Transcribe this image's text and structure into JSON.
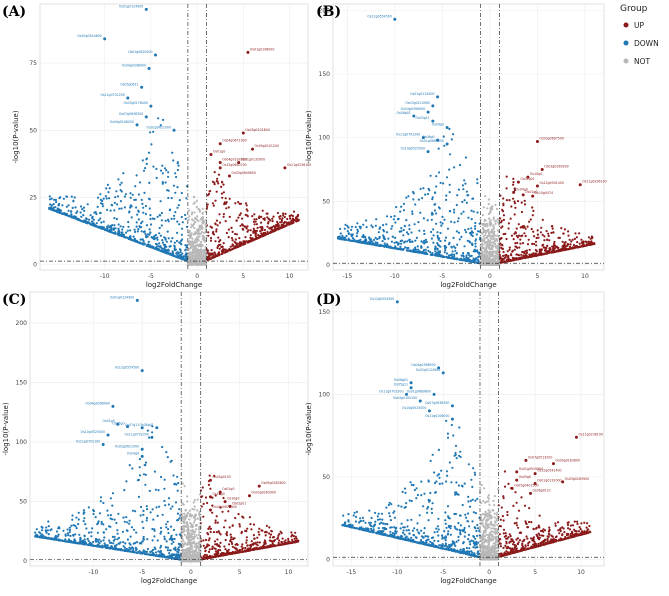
{
  "legend": {
    "title": "Group",
    "entries": [
      {
        "label": "UP",
        "color": "#8b1a1a"
      },
      {
        "label": "DOWN",
        "color": "#1f77b4"
      },
      {
        "label": "NOT",
        "color": "#b8b8b8"
      }
    ]
  },
  "chart_data": [
    {
      "type": "scatter",
      "title": "(A)",
      "xlabel": "log2FoldChange",
      "ylabel": "-log10(P-value)",
      "xlim": [
        -17,
        12
      ],
      "ylim": [
        -2,
        97
      ],
      "xticks": [
        -10,
        -5,
        0,
        5,
        10
      ],
      "yticks": [
        0,
        25,
        50,
        75
      ],
      "fc_threshold": 1,
      "p_threshold": 1.3,
      "down_spread": 16,
      "up_spread": 11,
      "seed": 11,
      "labeled": [
        {
          "gene": "Os01g0124900",
          "x": -5.5,
          "y": 95,
          "group": "DOWN"
        },
        {
          "gene": "Os10g0544600",
          "x": -10,
          "y": 84,
          "group": "DOWN"
        },
        {
          "gene": "Os01g0810900",
          "x": -4.5,
          "y": 78,
          "group": "DOWN"
        },
        {
          "gene": "Os04g0398900",
          "x": -5.2,
          "y": 73,
          "group": "DOWN"
        },
        {
          "gene": "Os05g0611",
          "x": -6,
          "y": 66,
          "group": "DOWN"
        },
        {
          "gene": "Os11g0702200",
          "x": -7.5,
          "y": 62,
          "group": "DOWN"
        },
        {
          "gene": "Os03g0178400",
          "x": -5,
          "y": 59,
          "group": "DOWN"
        },
        {
          "gene": "Os07g0636300",
          "x": -5.5,
          "y": 55,
          "group": "DOWN"
        },
        {
          "gene": "Os04g0106050",
          "x": -6.5,
          "y": 52,
          "group": "DOWN"
        },
        {
          "gene": "Os02g0621000",
          "x": -2.5,
          "y": 50,
          "group": "DOWN"
        },
        {
          "gene": "Os01g0196000",
          "x": 5.5,
          "y": 79,
          "group": "UP"
        },
        {
          "gene": "Os03g0101800",
          "x": 5,
          "y": 49,
          "group": "UP"
        },
        {
          "gene": "Os04g0671900",
          "x": 2.5,
          "y": 45,
          "group": "UP"
        },
        {
          "gene": "Os09g0101200",
          "x": 6,
          "y": 43,
          "group": "UP"
        },
        {
          "gene": "Os01g0",
          "x": 1.5,
          "y": 41,
          "group": "UP"
        },
        {
          "gene": "Os04g0193200",
          "x": 2.5,
          "y": 38,
          "group": "UP"
        },
        {
          "gene": "Os01g0132000",
          "x": 4.5,
          "y": 38,
          "group": "UP"
        },
        {
          "gene": "Os12g0640700",
          "x": 2.5,
          "y": 36,
          "group": "UP"
        },
        {
          "gene": "Os11g0236100",
          "x": 9.5,
          "y": 36,
          "group": "UP"
        },
        {
          "gene": "Os03g0609600",
          "x": 3.5,
          "y": 33,
          "group": "UP"
        }
      ]
    },
    {
      "type": "scatter",
      "title": "(B)",
      "xlabel": "log2FoldChange",
      "ylabel": "-log10(P-value)",
      "xlim": [
        -16.5,
        12
      ],
      "ylim": [
        -4,
        205
      ],
      "xticks": [
        -15,
        -10,
        -5,
        0,
        5,
        10
      ],
      "yticks": [
        0,
        50,
        100,
        150,
        200
      ],
      "fc_threshold": 1,
      "p_threshold": 1.3,
      "down_spread": 16,
      "up_spread": 11,
      "seed": 23,
      "labeled": [
        {
          "gene": "Os12g0554500",
          "x": -10,
          "y": 193,
          "group": "DOWN"
        },
        {
          "gene": "Os01g0124900",
          "x": -5.5,
          "y": 132,
          "group": "DOWN"
        },
        {
          "gene": "Os03g0124900",
          "x": -6,
          "y": 125,
          "group": "DOWN"
        },
        {
          "gene": "Os04g0398900",
          "x": -6.5,
          "y": 120,
          "group": "DOWN"
        },
        {
          "gene": "Os08g01",
          "x": -8,
          "y": 117,
          "group": "DOWN"
        },
        {
          "gene": "Os05g11",
          "x": -6,
          "y": 113,
          "group": "DOWN"
        },
        {
          "gene": "Os09g0",
          "x": -4.5,
          "y": 108,
          "group": "DOWN"
        },
        {
          "gene": "Os11g0702200",
          "x": -7,
          "y": 100,
          "group": "DOWN"
        },
        {
          "gene": "Os06g0",
          "x": -5.5,
          "y": 98,
          "group": "DOWN"
        },
        {
          "gene": "Os01g0689800",
          "x": -4.5,
          "y": 95,
          "group": "DOWN"
        },
        {
          "gene": "Os10g0525000",
          "x": -6.5,
          "y": 89,
          "group": "DOWN"
        },
        {
          "gene": "Os03g0697500",
          "x": 5,
          "y": 97,
          "group": "UP"
        },
        {
          "gene": "Os03g0263900",
          "x": 5.5,
          "y": 75,
          "group": "UP"
        },
        {
          "gene": "Os10g0",
          "x": 4,
          "y": 69,
          "group": "UP"
        },
        {
          "gene": "Os02g01",
          "x": 3,
          "y": 65,
          "group": "UP"
        },
        {
          "gene": "Os12g0541400",
          "x": 5,
          "y": 62,
          "group": "UP"
        },
        {
          "gene": "Os11g0236100",
          "x": 9.5,
          "y": 63,
          "group": "UP"
        },
        {
          "gene": "Os04g0",
          "x": 2.5,
          "y": 57,
          "group": "UP"
        },
        {
          "gene": "Os01g0",
          "x": 3.5,
          "y": 55,
          "group": "UP"
        },
        {
          "gene": "Os10g0474",
          "x": 4.5,
          "y": 54,
          "group": "UP"
        }
      ]
    },
    {
      "type": "scatter",
      "title": "(C)",
      "xlabel": "log2FoldChange",
      "ylabel": "-log10(P-value)",
      "xlim": [
        -16.5,
        12
      ],
      "ylim": [
        -4,
        226
      ],
      "xticks": [
        -10,
        -5,
        0,
        5,
        10
      ],
      "yticks": [
        0,
        50,
        100,
        150,
        200
      ],
      "fc_threshold": 1,
      "p_threshold": 1.3,
      "down_spread": 16,
      "up_spread": 11,
      "seed": 37,
      "labeled": [
        {
          "gene": "Os01g0124900",
          "x": -5.5,
          "y": 219,
          "group": "DOWN"
        },
        {
          "gene": "Os12g0554500",
          "x": -5,
          "y": 160,
          "group": "DOWN"
        },
        {
          "gene": "Os04g0398900",
          "x": -8,
          "y": 130,
          "group": "DOWN"
        },
        {
          "gene": "Os01g0",
          "x": -7.5,
          "y": 115,
          "group": "DOWN"
        },
        {
          "gene": "Os05g0",
          "x": -6.5,
          "y": 113,
          "group": "DOWN"
        },
        {
          "gene": "Os07g11",
          "x": -5,
          "y": 112,
          "group": "DOWN"
        },
        {
          "gene": "Os08g01",
          "x": -3.5,
          "y": 112,
          "group": "DOWN"
        },
        {
          "gene": "Os10g0525000",
          "x": -8.5,
          "y": 106,
          "group": "DOWN"
        },
        {
          "gene": "Os11g0702200",
          "x": -4,
          "y": 104,
          "group": "DOWN"
        },
        {
          "gene": "Os11g0702100",
          "x": -9,
          "y": 98,
          "group": "DOWN"
        },
        {
          "gene": "Os02g0621000",
          "x": -5,
          "y": 94,
          "group": "DOWN"
        },
        {
          "gene": "Os04g0",
          "x": -5,
          "y": 88,
          "group": "DOWN"
        },
        {
          "gene": "Os04g0103",
          "x": 2,
          "y": 68,
          "group": "UP"
        },
        {
          "gene": "Os09g0183800",
          "x": 7,
          "y": 63,
          "group": "UP"
        },
        {
          "gene": "Os01g0",
          "x": 3,
          "y": 58,
          "group": "UP"
        },
        {
          "gene": "Os12g0",
          "x": 2,
          "y": 54,
          "group": "UP"
        },
        {
          "gene": "Os03g0263900",
          "x": 6,
          "y": 55,
          "group": "UP"
        },
        {
          "gene": "Os10g0",
          "x": 3.5,
          "y": 50,
          "group": "UP"
        },
        {
          "gene": "Os02g01",
          "x": 4,
          "y": 46,
          "group": "UP"
        },
        {
          "gene": "Os04g0671900",
          "x": 2,
          "y": 43,
          "group": "UP"
        }
      ]
    },
    {
      "type": "scatter",
      "title": "(D)",
      "xlabel": "log2FoldChange",
      "ylabel": "-log10(P-value)",
      "xlim": [
        -17,
        12.5
      ],
      "ylim": [
        -4,
        162
      ],
      "xticks": [
        -15,
        -10,
        -5,
        0,
        5,
        10
      ],
      "yticks": [
        0,
        50,
        100,
        150
      ],
      "fc_threshold": 1,
      "p_threshold": 1.3,
      "down_spread": 16,
      "up_spread": 11,
      "seed": 53,
      "labeled": [
        {
          "gene": "Os12g0554500",
          "x": -10,
          "y": 156,
          "group": "DOWN"
        },
        {
          "gene": "Os04g0398900",
          "x": -5.5,
          "y": 116,
          "group": "DOWN"
        },
        {
          "gene": "Os01g0124900",
          "x": -5,
          "y": 113,
          "group": "DOWN"
        },
        {
          "gene": "Os08g01",
          "x": -8.5,
          "y": 107,
          "group": "DOWN"
        },
        {
          "gene": "Os05g11",
          "x": -8.5,
          "y": 104,
          "group": "DOWN"
        },
        {
          "gene": "Os11g0702200",
          "x": -9,
          "y": 100,
          "group": "DOWN"
        },
        {
          "gene": "Os01g0689800",
          "x": -6,
          "y": 100,
          "group": "DOWN"
        },
        {
          "gene": "Os04g0100100",
          "x": -7.5,
          "y": 96,
          "group": "DOWN"
        },
        {
          "gene": "Os07g0636300",
          "x": -4,
          "y": 93,
          "group": "DOWN"
        },
        {
          "gene": "Os10g0525000",
          "x": -6.5,
          "y": 90,
          "group": "DOWN"
        },
        {
          "gene": "Os11g0106000",
          "x": -4,
          "y": 85,
          "group": "DOWN"
        },
        {
          "gene": "Os11g0236100",
          "x": 9.5,
          "y": 74,
          "group": "UP"
        },
        {
          "gene": "Os07g0513200",
          "x": 4,
          "y": 60,
          "group": "UP"
        },
        {
          "gene": "Os09g0183800",
          "x": 7,
          "y": 58,
          "group": "UP"
        },
        {
          "gene": "Os01g0919900",
          "x": 3,
          "y": 53,
          "group": "UP"
        },
        {
          "gene": "Os12g0541400",
          "x": 5,
          "y": 52,
          "group": "UP"
        },
        {
          "gene": "Os03g0",
          "x": 3,
          "y": 48,
          "group": "UP"
        },
        {
          "gene": "Os03g0263900",
          "x": 8,
          "y": 47,
          "group": "UP"
        },
        {
          "gene": "Os01g0132000",
          "x": 5,
          "y": 46,
          "group": "UP"
        },
        {
          "gene": "Os05g0402500",
          "x": 2.5,
          "y": 43,
          "group": "UP"
        },
        {
          "gene": "Os08g0121",
          "x": 4.5,
          "y": 40,
          "group": "UP"
        }
      ]
    }
  ]
}
